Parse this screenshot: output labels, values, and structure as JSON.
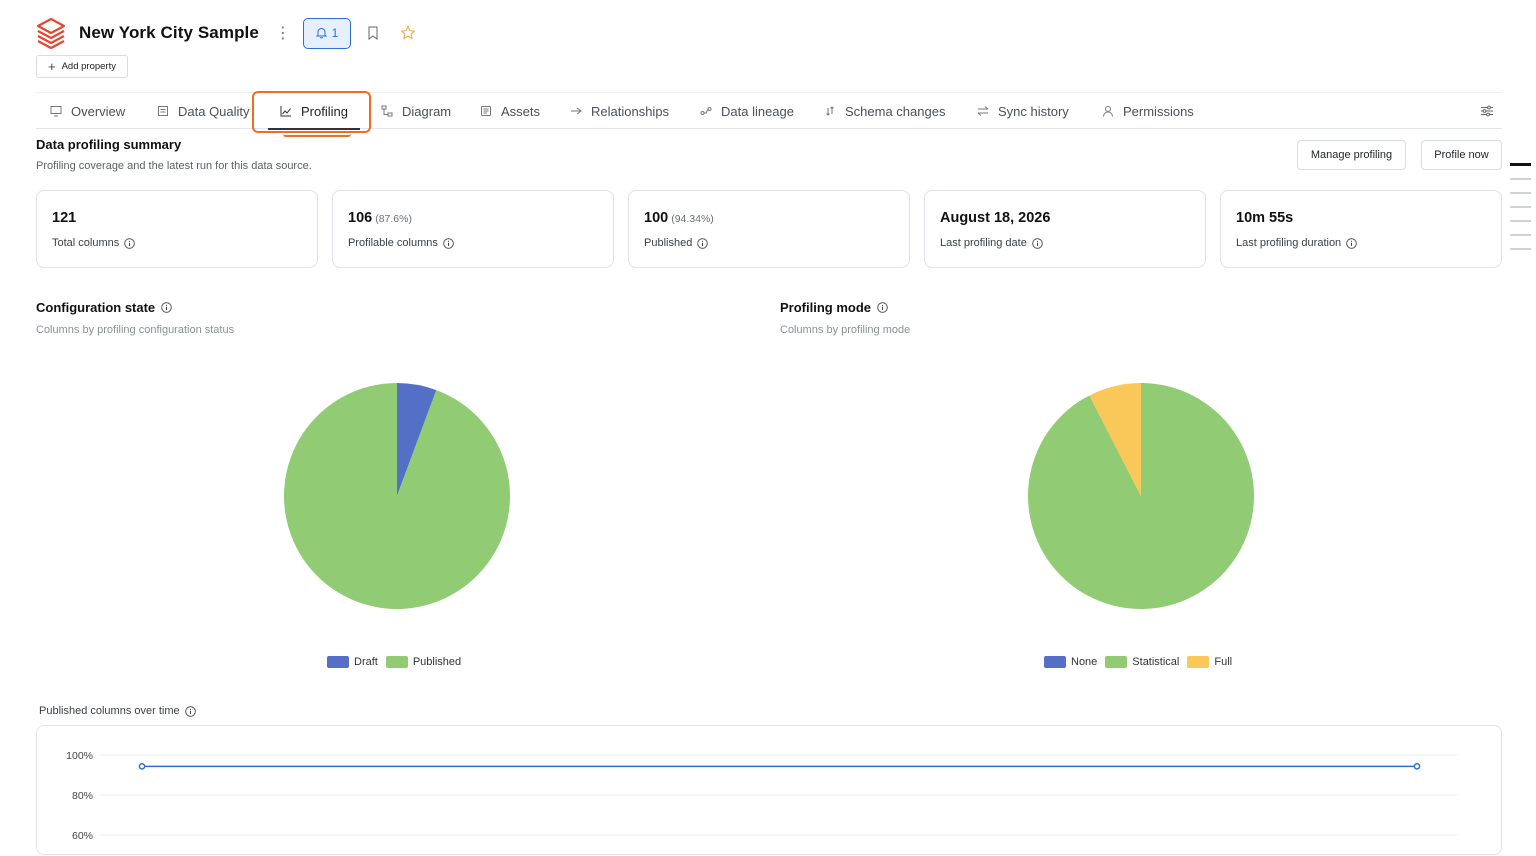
{
  "app": {
    "title": "New York City Sample",
    "alerts_count": "1",
    "add_property_label": "Add property"
  },
  "tabs": [
    {
      "label": "Overview",
      "icon": "monitor-icon"
    },
    {
      "label": "Data Quality",
      "icon": "checklist-icon"
    },
    {
      "label": "Profiling",
      "icon": "chart-icon",
      "active": true
    },
    {
      "label": "Diagram",
      "icon": "diagram-icon"
    },
    {
      "label": "Assets",
      "icon": "assets-icon"
    },
    {
      "label": "Relationships",
      "icon": "relationships-icon"
    },
    {
      "label": "Data lineage",
      "icon": "lineage-icon"
    },
    {
      "label": "Schema changes",
      "icon": "schema-changes-icon"
    },
    {
      "label": "Sync history",
      "icon": "sync-icon"
    },
    {
      "label": "Permissions",
      "icon": "user-icon"
    }
  ],
  "summary": {
    "title": "Data profiling summary",
    "subtitle": "Profiling coverage and the latest run for this data source.",
    "manage_label": "Manage profiling",
    "profile_now_label": "Profile now",
    "cards": [
      {
        "value": "121",
        "pct": "",
        "label": "Total columns"
      },
      {
        "value": "106",
        "pct": "(87.6%)",
        "label": "Profilable columns"
      },
      {
        "value": "100",
        "pct": "(94.34%)",
        "label": "Published"
      },
      {
        "value": "August 18, 2026",
        "pct": "",
        "label": "Last profiling date"
      },
      {
        "value": "10m 55s",
        "pct": "",
        "label": "Last profiling duration"
      }
    ]
  },
  "config_state": {
    "title": "Configuration state",
    "subtitle": "Columns by profiling configuration status"
  },
  "profiling_mode": {
    "title": "Profiling mode",
    "subtitle": "Columns by profiling mode"
  },
  "line_chart_title": "Published columns over time",
  "colors": {
    "draft": "#5470c6",
    "published": "#91cc75",
    "none": "#5470c6",
    "statistical": "#91cc75",
    "full": "#fac858",
    "accent": "#2b6fd6",
    "highlight": "#f06d1f"
  },
  "chart_data": [
    {
      "type": "pie",
      "series": [
        {
          "name": "Draft",
          "value": 6,
          "color": "#5470c6"
        },
        {
          "name": "Published",
          "value": 100,
          "color": "#91cc75"
        }
      ],
      "legend": "bottom"
    },
    {
      "type": "pie",
      "series": [
        {
          "name": "None",
          "value": 0,
          "color": "#5470c6"
        },
        {
          "name": "Statistical",
          "value": 98,
          "color": "#91cc75"
        },
        {
          "name": "Full",
          "value": 8,
          "color": "#fac858"
        }
      ],
      "legend": "bottom"
    },
    {
      "type": "line",
      "yticks": [
        "100%",
        "80%",
        "60%"
      ],
      "ylim": [
        60,
        100
      ],
      "values": [
        94.34,
        94.34
      ],
      "grid": true
    }
  ]
}
